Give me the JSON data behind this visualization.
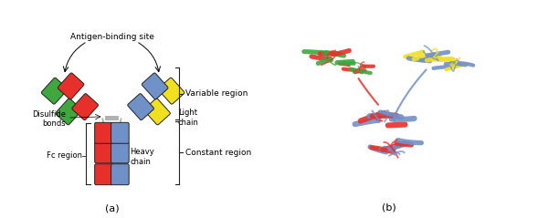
{
  "title_a": "(a)",
  "title_b": "(b)",
  "bg_color": "#ffffff",
  "colors": {
    "red": "#e8302a",
    "green": "#3ea83e",
    "blue": "#7090c8",
    "yellow": "#f0e020",
    "dark": "#222222",
    "gray": "#888888"
  },
  "labels": {
    "antigen_binding": "Antigen-binding site",
    "variable_region": "Variable region",
    "constant_region": "Constant region",
    "light_chain": "Light\nchain",
    "heavy_chain": "Heavy\nchain",
    "disulfide_bonds": "Disulfide\nbonds",
    "fc_region": "Fc region"
  },
  "fontsize_label": 6.5,
  "fontsize_title": 8
}
